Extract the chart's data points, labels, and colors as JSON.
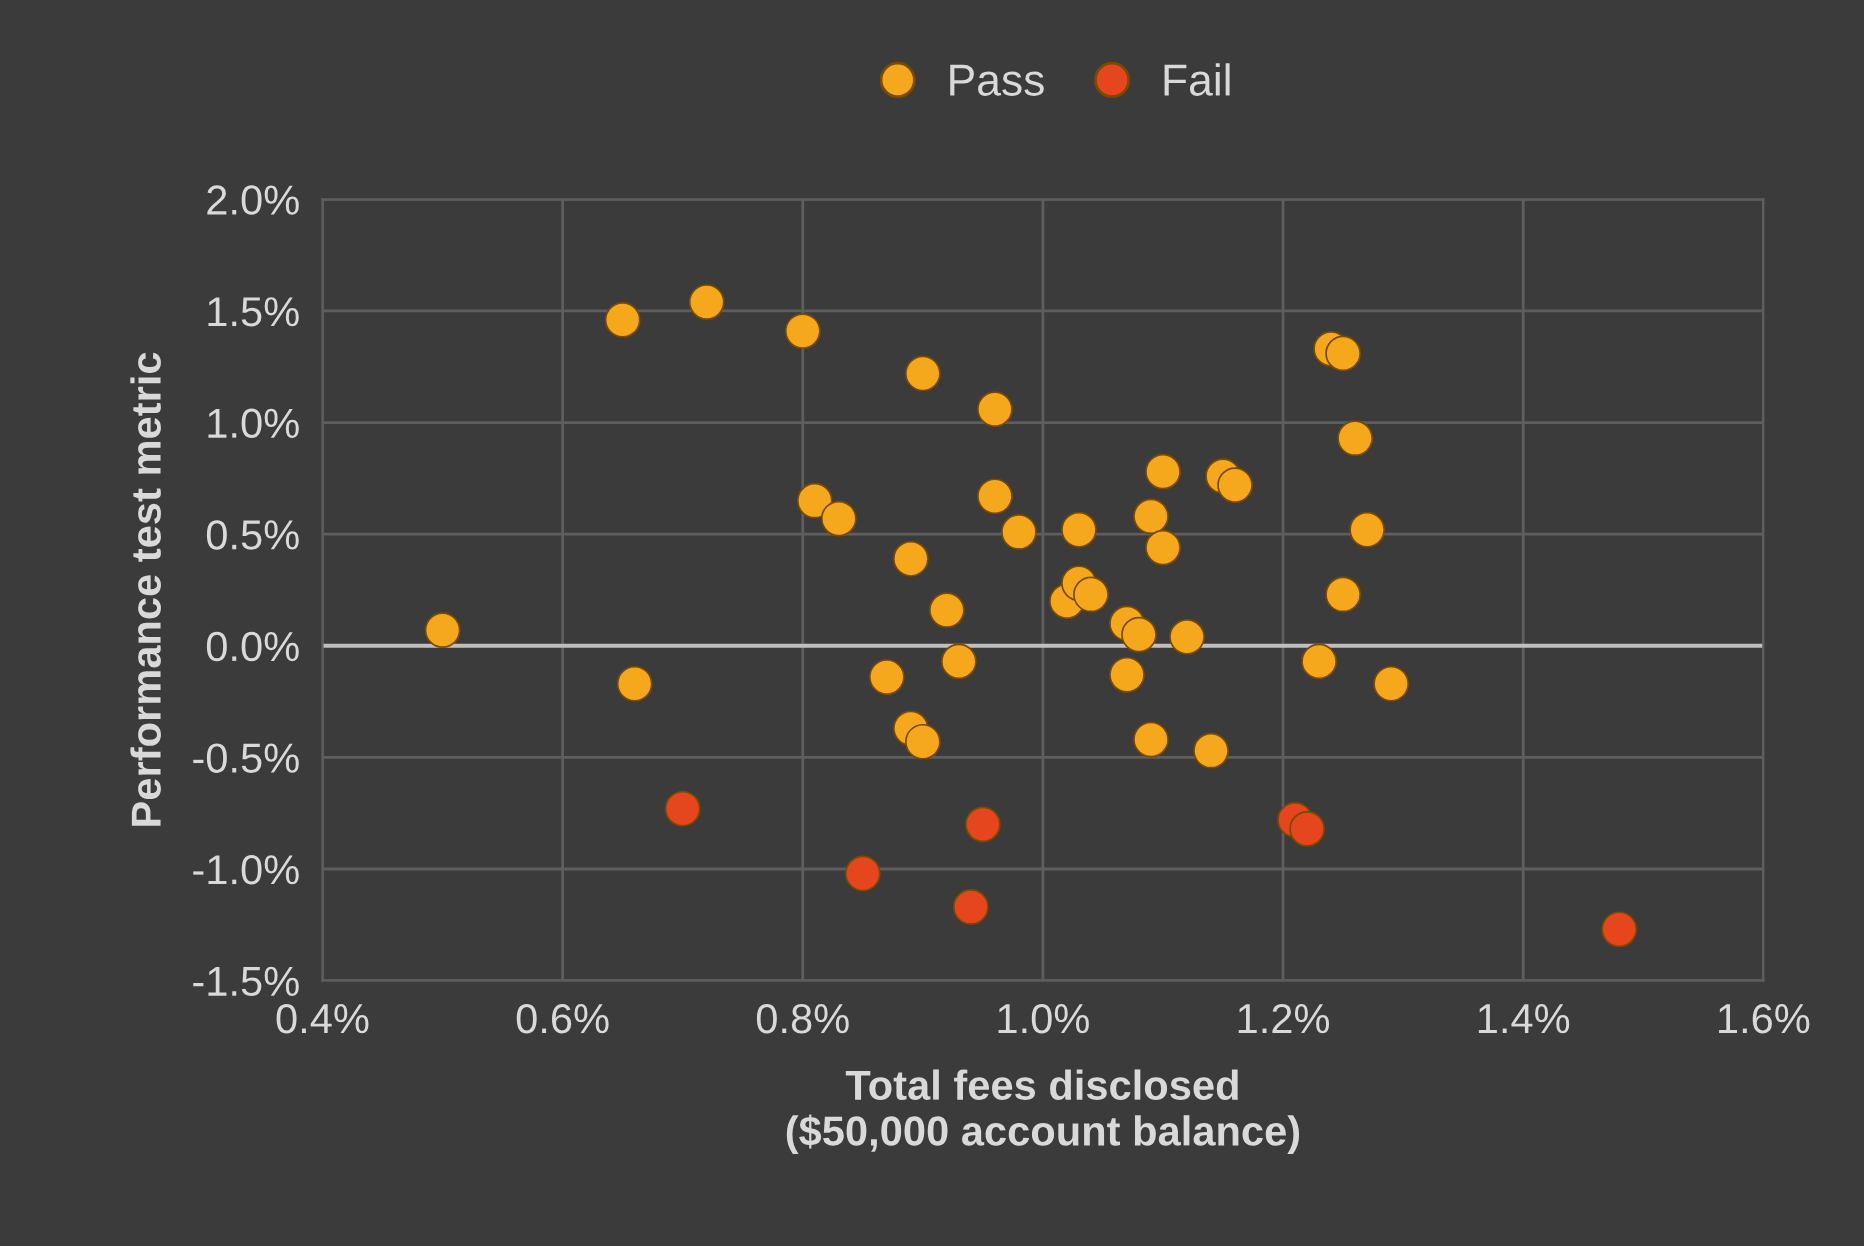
{
  "chart_data": {
    "type": "scatter",
    "xlabel": "Total fees disclosed\n($50,000 account balance)",
    "ylabel": "Performance test metric",
    "xlim": [
      0.4,
      1.6
    ],
    "ylim": [
      -1.5,
      2.0
    ],
    "xticks": [
      {
        "value": 0.4,
        "label": "0.4%"
      },
      {
        "value": 0.6,
        "label": "0.6%"
      },
      {
        "value": 0.8,
        "label": "0.8%"
      },
      {
        "value": 1.0,
        "label": "1.0%"
      },
      {
        "value": 1.2,
        "label": "1.2%"
      },
      {
        "value": 1.4,
        "label": "1.4%"
      },
      {
        "value": 1.6,
        "label": "1.6%"
      }
    ],
    "yticks": [
      {
        "value": -1.5,
        "label": "-1.5%"
      },
      {
        "value": -1.0,
        "label": "-1.0%"
      },
      {
        "value": -0.5,
        "label": "-0.5%"
      },
      {
        "value": 0.0,
        "label": "0.0%"
      },
      {
        "value": 0.5,
        "label": "0.5%"
      },
      {
        "value": 1.0,
        "label": "1.0%"
      },
      {
        "value": 1.5,
        "label": "1.5%"
      },
      {
        "value": 2.0,
        "label": "2.0%"
      }
    ],
    "grid": true,
    "legend": "top",
    "marker": "circle",
    "ref_lines": [
      {
        "axis": "y",
        "value": 0.0,
        "color": "#bfbfbf"
      }
    ],
    "series": [
      {
        "name": "Pass",
        "color": "#f5a81c",
        "x": [
          0.5,
          0.65,
          0.72,
          0.8,
          0.66,
          0.81,
          0.83,
          0.9,
          0.89,
          0.87,
          0.92,
          0.93,
          0.89,
          0.9,
          0.96,
          0.96,
          0.98,
          1.03,
          1.02,
          1.03,
          1.04,
          1.09,
          1.1,
          1.1,
          1.07,
          1.08,
          1.07,
          1.12,
          1.09,
          1.14,
          1.15,
          1.16,
          1.24,
          1.25,
          1.26,
          1.27,
          1.25,
          1.23,
          1.29
        ],
        "values": [
          0.07,
          1.46,
          1.54,
          1.41,
          -0.17,
          0.65,
          0.57,
          1.22,
          0.39,
          -0.14,
          0.16,
          -0.07,
          -0.37,
          -0.43,
          1.06,
          0.67,
          0.51,
          0.52,
          0.2,
          0.28,
          0.23,
          0.58,
          0.78,
          0.44,
          0.1,
          0.05,
          -0.13,
          0.04,
          -0.42,
          -0.47,
          0.76,
          0.72,
          1.33,
          1.31,
          0.93,
          0.52,
          0.23,
          -0.07,
          -0.17
        ]
      },
      {
        "name": "Fail",
        "color": "#e5461e",
        "x": [
          0.7,
          0.85,
          0.95,
          0.94,
          1.21,
          1.22,
          1.48
        ],
        "values": [
          -0.73,
          -1.02,
          -0.8,
          -1.17,
          -0.78,
          -0.82,
          -1.27
        ]
      }
    ]
  }
}
